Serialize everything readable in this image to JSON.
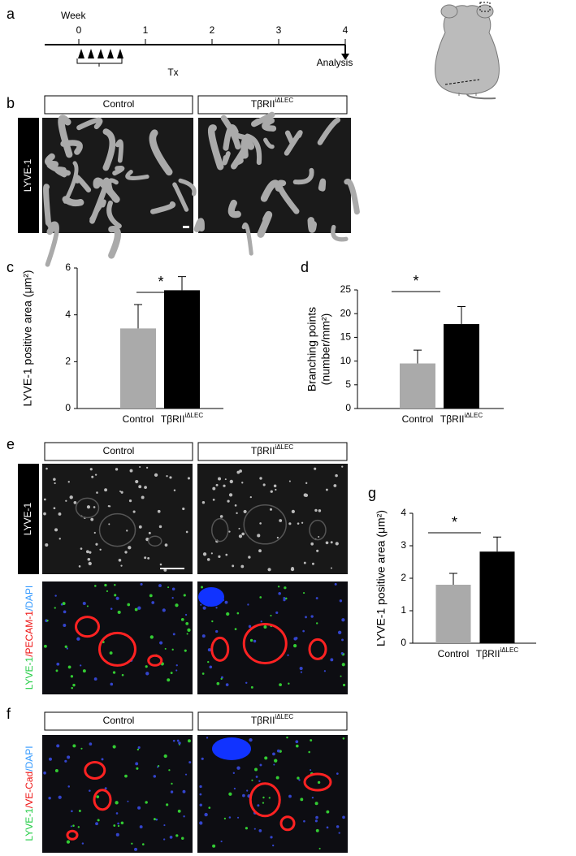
{
  "panel_labels": [
    "a",
    "b",
    "c",
    "d",
    "e",
    "f",
    "g"
  ],
  "timeline": {
    "axis_label": "Week",
    "ticks": [
      0,
      1,
      2,
      3,
      4
    ],
    "treatment": "Tx",
    "endpoint": "Analysis"
  },
  "groups": {
    "control": "Control",
    "knockout": "TβRII",
    "knockout_sup": "iΔLEC"
  },
  "panel_b": {
    "row_label": "LYVE-1"
  },
  "panel_e": {
    "row_label": "LYVE-1",
    "stain_label": [
      {
        "text": "LYVE-1",
        "color": "#22cc44"
      },
      {
        "text": "/PECAM-1",
        "color": "#ee1111"
      },
      {
        "text": "/DAPI",
        "color": "#3399ff"
      }
    ]
  },
  "panel_f": {
    "stain_label": [
      {
        "text": "LYVE-1",
        "color": "#22cc44"
      },
      {
        "text": "/VE-Cad",
        "color": "#ee1111"
      },
      {
        "text": "/DAPI",
        "color": "#3399ff"
      }
    ]
  },
  "chart_data": [
    {
      "type": "bar",
      "y_label": [
        "LYVE-1 positive area (μm²)"
      ],
      "categories": [
        "Control",
        "TβRII"
      ],
      "category_superscripts": [
        null,
        "iΔLEC"
      ],
      "values": [
        3.42,
        5.05
      ],
      "errors": [
        1.02,
        0.58
      ],
      "colors": [
        "#aaaaaa",
        "#000000"
      ],
      "ylim": [
        0,
        6
      ],
      "yticks": [
        0,
        2,
        4,
        6
      ],
      "significance": "*"
    },
    {
      "type": "bar",
      "y_label": [
        "Branching points",
        "(number/mm²)"
      ],
      "categories": [
        "Control",
        "TβRII"
      ],
      "category_superscripts": [
        null,
        "iΔLEC"
      ],
      "values": [
        9.5,
        17.8
      ],
      "errors": [
        2.8,
        3.7
      ],
      "colors": [
        "#aaaaaa",
        "#000000"
      ],
      "ylim": [
        0,
        25
      ],
      "yticks": [
        0,
        5,
        10,
        15,
        20,
        25
      ],
      "significance": "*"
    },
    {
      "type": "bar",
      "y_label": [
        "LYVE-1 positive area (μm²)"
      ],
      "categories": [
        "Control",
        "TβRII"
      ],
      "category_superscripts": [
        null,
        "iΔLEC"
      ],
      "values": [
        1.8,
        2.82
      ],
      "errors": [
        0.35,
        0.45
      ],
      "colors": [
        "#aaaaaa",
        "#000000"
      ],
      "ylim": [
        0,
        4
      ],
      "yticks": [
        0,
        1,
        2,
        3,
        4
      ],
      "significance": "*"
    }
  ]
}
